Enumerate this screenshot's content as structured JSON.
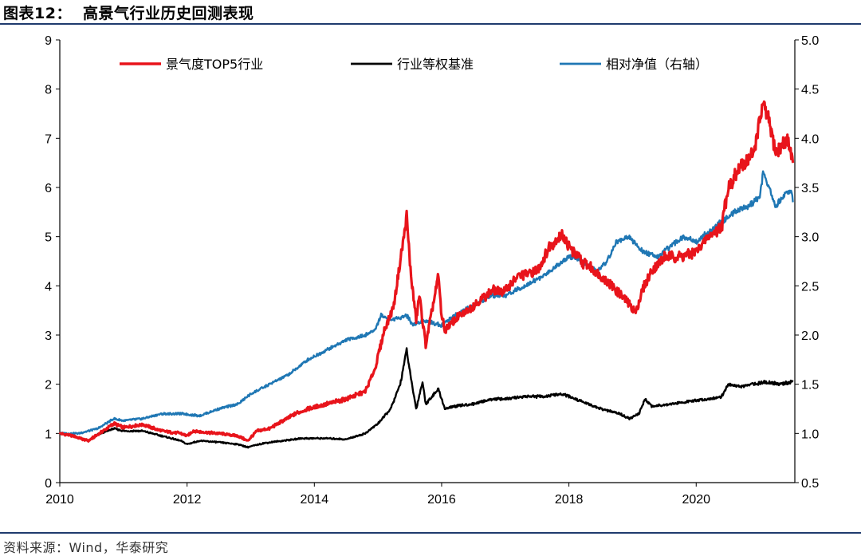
{
  "figure": {
    "title_label": "图表12：",
    "title_text": "高景气行业历史回测表现",
    "source": "资料来源：Wind，华泰研究"
  },
  "chart_data": {
    "type": "line",
    "title": "高景气行业历史回测表现",
    "xlabel": "",
    "ylabel_left": "",
    "ylabel_right": "",
    "x_range": [
      2010,
      2021.55
    ],
    "x_ticks": [
      "2010",
      "2012",
      "2014",
      "2016",
      "2018",
      "2020"
    ],
    "x_tick_values": [
      2010,
      2012,
      2014,
      2016,
      2018,
      2020
    ],
    "ylim_left": [
      0,
      9
    ],
    "y_ticks_left": [
      "0",
      "1",
      "2",
      "3",
      "4",
      "5",
      "6",
      "7",
      "8",
      "9"
    ],
    "ylim_right": [
      0.5,
      5.0
    ],
    "y_ticks_right": [
      "0.5",
      "1.0",
      "1.5",
      "2.0",
      "2.5",
      "3.0",
      "3.5",
      "4.0",
      "4.5",
      "5.0"
    ],
    "grid": false,
    "legend_position": "top",
    "series": [
      {
        "name": "景气度TOP5行业",
        "axis": "left",
        "color": "#e8141b",
        "points": [
          [
            2010.0,
            1.0
          ],
          [
            2010.2,
            0.95
          ],
          [
            2010.45,
            0.85
          ],
          [
            2010.6,
            0.98
          ],
          [
            2010.85,
            1.2
          ],
          [
            2011.0,
            1.12
          ],
          [
            2011.3,
            1.18
          ],
          [
            2011.6,
            1.05
          ],
          [
            2011.9,
            1.0
          ],
          [
            2012.0,
            0.95
          ],
          [
            2012.1,
            1.05
          ],
          [
            2012.3,
            1.02
          ],
          [
            2012.5,
            1.0
          ],
          [
            2012.8,
            0.95
          ],
          [
            2012.95,
            0.85
          ],
          [
            2013.1,
            1.05
          ],
          [
            2013.3,
            1.1
          ],
          [
            2013.5,
            1.25
          ],
          [
            2013.7,
            1.4
          ],
          [
            2013.9,
            1.5
          ],
          [
            2014.2,
            1.6
          ],
          [
            2014.5,
            1.7
          ],
          [
            2014.8,
            1.85
          ],
          [
            2014.95,
            2.3
          ],
          [
            2015.1,
            3.1
          ],
          [
            2015.25,
            3.6
          ],
          [
            2015.35,
            4.5
          ],
          [
            2015.45,
            5.4
          ],
          [
            2015.52,
            4.2
          ],
          [
            2015.6,
            3.3
          ],
          [
            2015.65,
            3.8
          ],
          [
            2015.75,
            2.8
          ],
          [
            2015.85,
            3.5
          ],
          [
            2015.95,
            4.2
          ],
          [
            2016.0,
            3.4
          ],
          [
            2016.05,
            3.1
          ],
          [
            2016.2,
            3.3
          ],
          [
            2016.5,
            3.6
          ],
          [
            2016.8,
            3.9
          ],
          [
            2017.0,
            3.9
          ],
          [
            2017.2,
            4.2
          ],
          [
            2017.5,
            4.3
          ],
          [
            2017.7,
            4.8
          ],
          [
            2017.9,
            5.05
          ],
          [
            2018.0,
            4.8
          ],
          [
            2018.2,
            4.5
          ],
          [
            2018.4,
            4.3
          ],
          [
            2018.6,
            4.1
          ],
          [
            2018.75,
            3.9
          ],
          [
            2018.9,
            3.7
          ],
          [
            2019.05,
            3.45
          ],
          [
            2019.15,
            3.9
          ],
          [
            2019.3,
            4.3
          ],
          [
            2019.5,
            4.6
          ],
          [
            2019.8,
            4.6
          ],
          [
            2020.0,
            4.7
          ],
          [
            2020.2,
            5.0
          ],
          [
            2020.4,
            5.2
          ],
          [
            2020.5,
            6.0
          ],
          [
            2020.7,
            6.4
          ],
          [
            2020.9,
            6.7
          ],
          [
            2021.05,
            7.7
          ],
          [
            2021.15,
            7.3
          ],
          [
            2021.25,
            6.7
          ],
          [
            2021.35,
            6.85
          ],
          [
            2021.45,
            7.0
          ],
          [
            2021.52,
            6.5
          ]
        ]
      },
      {
        "name": "行业等权基准",
        "axis": "left",
        "color": "#000000",
        "points": [
          [
            2010.0,
            1.0
          ],
          [
            2010.2,
            0.95
          ],
          [
            2010.45,
            0.85
          ],
          [
            2010.6,
            0.98
          ],
          [
            2010.85,
            1.1
          ],
          [
            2011.0,
            1.05
          ],
          [
            2011.3,
            1.05
          ],
          [
            2011.6,
            0.95
          ],
          [
            2011.9,
            0.85
          ],
          [
            2012.0,
            0.78
          ],
          [
            2012.2,
            0.85
          ],
          [
            2012.5,
            0.82
          ],
          [
            2012.8,
            0.78
          ],
          [
            2012.95,
            0.72
          ],
          [
            2013.2,
            0.8
          ],
          [
            2013.5,
            0.85
          ],
          [
            2013.8,
            0.9
          ],
          [
            2014.2,
            0.9
          ],
          [
            2014.5,
            0.88
          ],
          [
            2014.8,
            1.0
          ],
          [
            2015.0,
            1.2
          ],
          [
            2015.2,
            1.5
          ],
          [
            2015.35,
            2.0
          ],
          [
            2015.45,
            2.7
          ],
          [
            2015.52,
            2.1
          ],
          [
            2015.6,
            1.5
          ],
          [
            2015.7,
            2.05
          ],
          [
            2015.75,
            1.6
          ],
          [
            2015.85,
            1.75
          ],
          [
            2015.95,
            1.9
          ],
          [
            2016.05,
            1.5
          ],
          [
            2016.2,
            1.55
          ],
          [
            2016.5,
            1.6
          ],
          [
            2016.8,
            1.7
          ],
          [
            2017.0,
            1.7
          ],
          [
            2017.3,
            1.75
          ],
          [
            2017.6,
            1.75
          ],
          [
            2017.9,
            1.8
          ],
          [
            2018.2,
            1.65
          ],
          [
            2018.5,
            1.5
          ],
          [
            2018.8,
            1.4
          ],
          [
            2018.95,
            1.3
          ],
          [
            2019.1,
            1.4
          ],
          [
            2019.2,
            1.7
          ],
          [
            2019.3,
            1.55
          ],
          [
            2019.6,
            1.6
          ],
          [
            2019.9,
            1.65
          ],
          [
            2020.2,
            1.7
          ],
          [
            2020.4,
            1.75
          ],
          [
            2020.5,
            2.0
          ],
          [
            2020.7,
            1.95
          ],
          [
            2020.9,
            2.0
          ],
          [
            2021.1,
            2.05
          ],
          [
            2021.3,
            2.0
          ],
          [
            2021.52,
            2.05
          ]
        ]
      },
      {
        "name": "相对净值（右轴）",
        "axis": "right",
        "color": "#1f77b4",
        "points": [
          [
            2010.0,
            1.0
          ],
          [
            2010.3,
            1.0
          ],
          [
            2010.6,
            1.05
          ],
          [
            2010.85,
            1.15
          ],
          [
            2011.0,
            1.13
          ],
          [
            2011.3,
            1.15
          ],
          [
            2011.6,
            1.2
          ],
          [
            2011.9,
            1.2
          ],
          [
            2012.2,
            1.18
          ],
          [
            2012.5,
            1.25
          ],
          [
            2012.8,
            1.3
          ],
          [
            2013.0,
            1.4
          ],
          [
            2013.3,
            1.5
          ],
          [
            2013.6,
            1.6
          ],
          [
            2013.9,
            1.75
          ],
          [
            2014.2,
            1.85
          ],
          [
            2014.5,
            1.95
          ],
          [
            2014.8,
            2.0
          ],
          [
            2014.95,
            2.05
          ],
          [
            2015.05,
            2.2
          ],
          [
            2015.2,
            2.15
          ],
          [
            2015.45,
            2.2
          ],
          [
            2015.55,
            2.1
          ],
          [
            2015.7,
            2.15
          ],
          [
            2016.0,
            2.1
          ],
          [
            2016.2,
            2.2
          ],
          [
            2016.5,
            2.3
          ],
          [
            2016.8,
            2.4
          ],
          [
            2017.0,
            2.4
          ],
          [
            2017.3,
            2.5
          ],
          [
            2017.6,
            2.6
          ],
          [
            2017.9,
            2.75
          ],
          [
            2018.0,
            2.8
          ],
          [
            2018.2,
            2.75
          ],
          [
            2018.45,
            2.65
          ],
          [
            2018.6,
            2.75
          ],
          [
            2018.75,
            2.95
          ],
          [
            2018.95,
            3.0
          ],
          [
            2019.15,
            2.85
          ],
          [
            2019.4,
            2.8
          ],
          [
            2019.8,
            3.0
          ],
          [
            2020.0,
            2.95
          ],
          [
            2020.2,
            3.05
          ],
          [
            2020.4,
            3.15
          ],
          [
            2020.6,
            3.25
          ],
          [
            2020.8,
            3.3
          ],
          [
            2021.0,
            3.4
          ],
          [
            2021.05,
            3.65
          ],
          [
            2021.15,
            3.5
          ],
          [
            2021.25,
            3.3
          ],
          [
            2021.4,
            3.45
          ],
          [
            2021.5,
            3.45
          ],
          [
            2021.52,
            3.35
          ]
        ]
      }
    ]
  }
}
